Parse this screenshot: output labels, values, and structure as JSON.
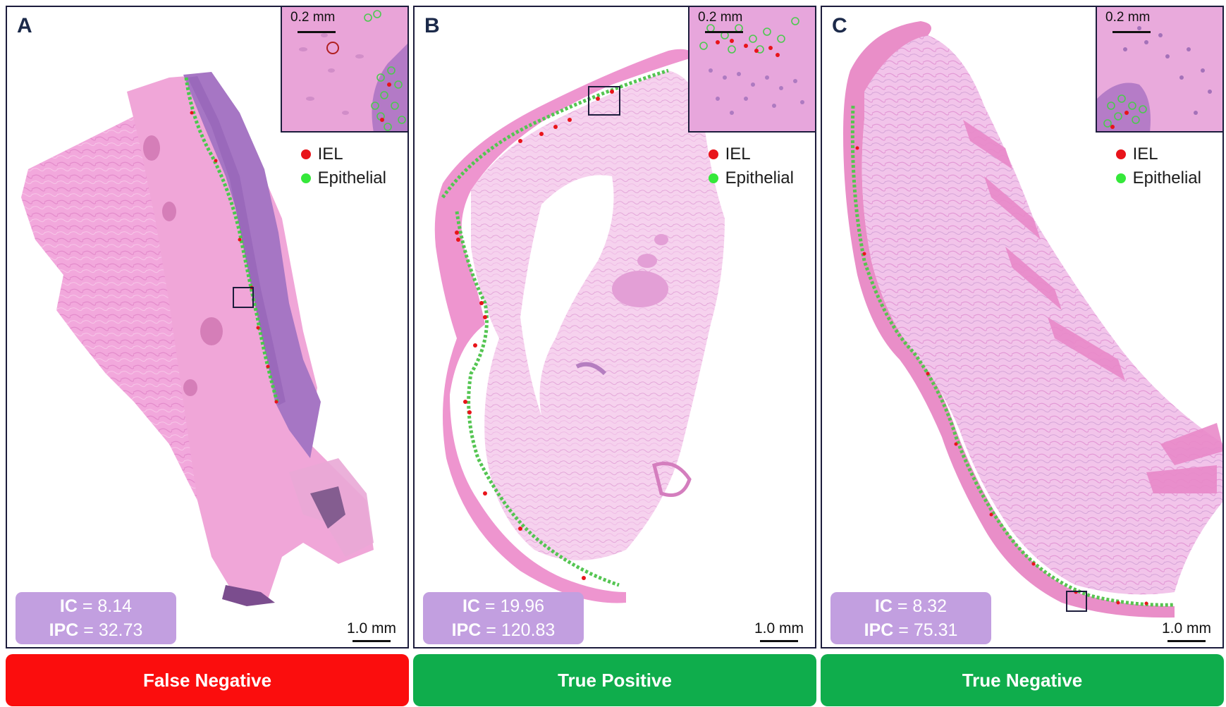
{
  "panels": [
    {
      "letter": "A",
      "inset_scale": "0.2 mm",
      "legend": [
        {
          "label": "IEL",
          "color": "#e8141a"
        },
        {
          "label": "Epithelial",
          "color": "#35e83a"
        }
      ],
      "ic_label": "IC",
      "ic_value": "8.14",
      "ipc_label": "IPC",
      "ipc_value": "32.73",
      "scale_label": "1.0 mm",
      "outcome": "False Negative",
      "outcome_color": "#fb0d0d"
    },
    {
      "letter": "B",
      "inset_scale": "0.2 mm",
      "legend": [
        {
          "label": "IEL",
          "color": "#e8141a"
        },
        {
          "label": "Epithelial",
          "color": "#35e83a"
        }
      ],
      "ic_label": "IC",
      "ic_value": "19.96",
      "ipc_label": "IPC",
      "ipc_value": "120.83",
      "scale_label": "1.0 mm",
      "outcome": "True Positive",
      "outcome_color": "#0fad4c"
    },
    {
      "letter": "C",
      "inset_scale": "0.2 mm",
      "legend": [
        {
          "label": "IEL",
          "color": "#e8141a"
        },
        {
          "label": "Epithelial",
          "color": "#35e83a"
        }
      ],
      "ic_label": "IC",
      "ic_value": "8.32",
      "ipc_label": "IPC",
      "ipc_value": "75.31",
      "scale_label": "1.0 mm",
      "outcome": "True Negative",
      "outcome_color": "#0fad4c"
    }
  ]
}
